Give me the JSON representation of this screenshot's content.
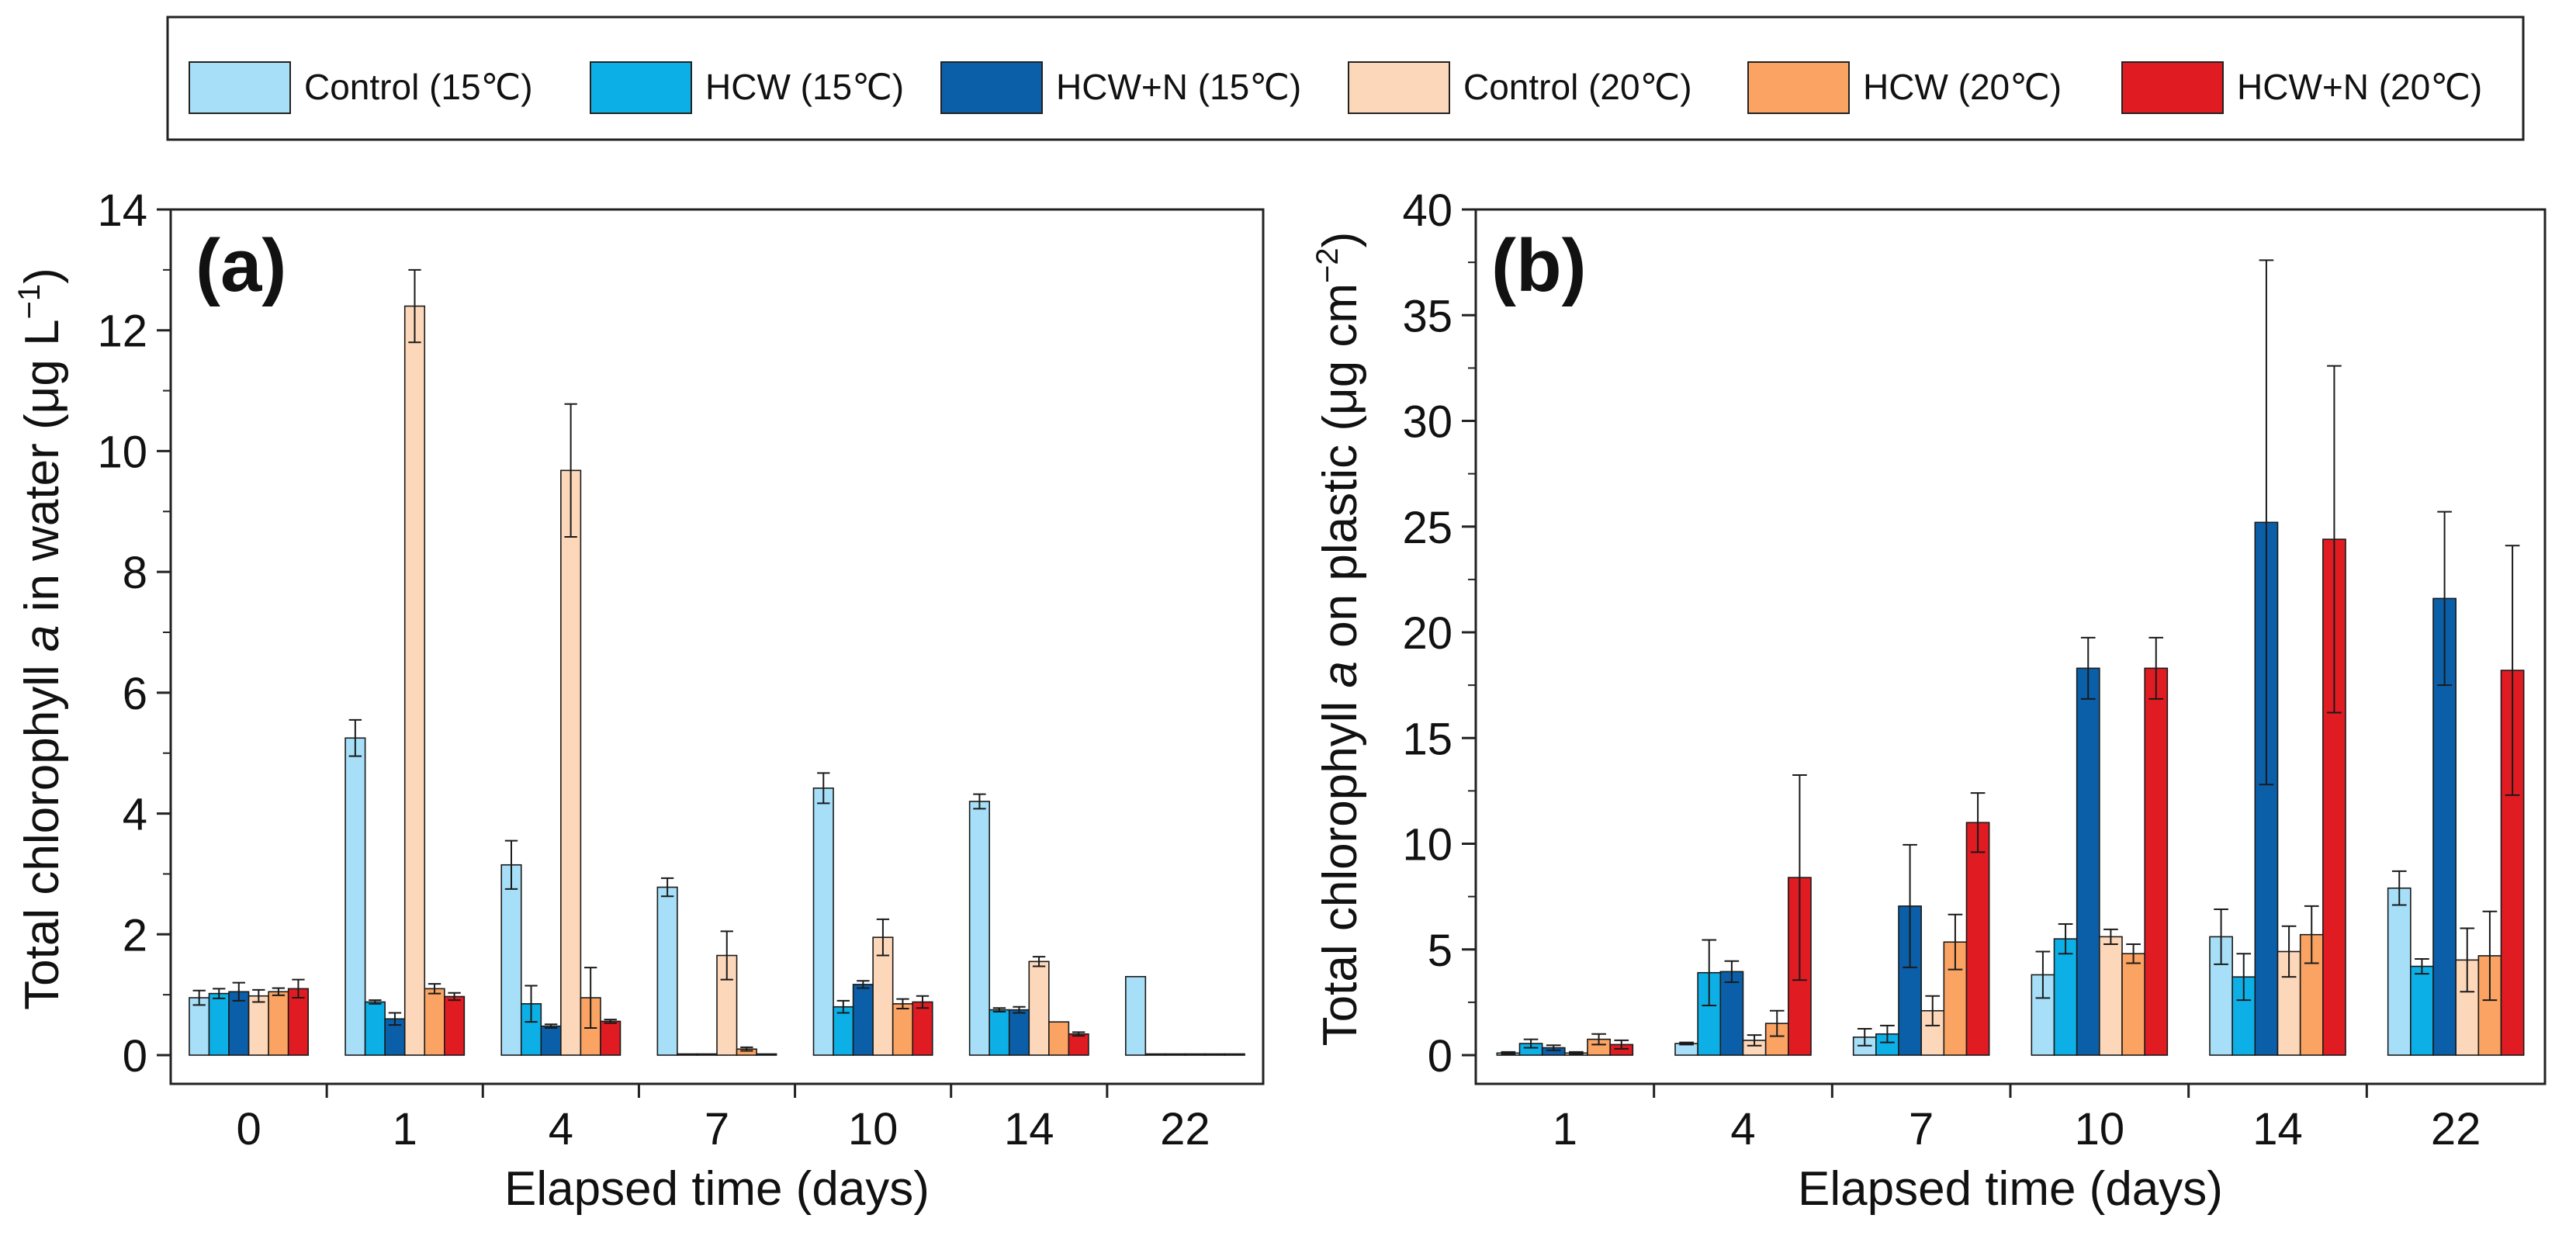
{
  "legend": [
    {
      "label": "Control (15℃)",
      "color": "#a6dff7"
    },
    {
      "label": "HCW (15℃)",
      "color": "#0db0e6"
    },
    {
      "label": "HCW+N (15℃)",
      "color": "#0a5fa8"
    },
    {
      "label": "Control (20℃)",
      "color": "#fdd7b9"
    },
    {
      "label": "HCW (20℃)",
      "color": "#faa362"
    },
    {
      "label": "HCW+N (20℃)",
      "color": "#e01b22"
    }
  ],
  "chart_data": [
    {
      "type": "bar",
      "panel_label": "(a)",
      "xlabel": "Elapsed time (days)",
      "ylabel_parts": [
        "Total chlorophyll ",
        "a",
        " in water (μg L",
        "−1",
        ")"
      ],
      "ylim": [
        0,
        14
      ],
      "yticks": [
        "0",
        "2",
        "4",
        "6",
        "8",
        "10",
        "12",
        "14"
      ],
      "categories": [
        "0",
        "1",
        "4",
        "7",
        "10",
        "14",
        "22"
      ],
      "series": [
        {
          "name": "Control (15℃)",
          "values": [
            0.95,
            5.25,
            3.15,
            2.78,
            4.42,
            4.2,
            1.3
          ],
          "errors": [
            0.12,
            0.3,
            0.4,
            0.15,
            0.25,
            0.12,
            0
          ]
        },
        {
          "name": "HCW (15℃)",
          "values": [
            1.02,
            0.88,
            0.85,
            0.02,
            0.8,
            0.75,
            0.02
          ],
          "errors": [
            0.08,
            0.03,
            0.3,
            0,
            0.1,
            0.03,
            0
          ]
        },
        {
          "name": "HCW+N (15℃)",
          "values": [
            1.05,
            0.6,
            0.48,
            0.02,
            1.17,
            0.75,
            0.02
          ],
          "errors": [
            0.15,
            0.1,
            0.03,
            0,
            0.06,
            0.05,
            0
          ]
        },
        {
          "name": "Control (20℃)",
          "values": [
            0.98,
            12.4,
            9.68,
            1.65,
            1.95,
            1.55,
            0.02
          ],
          "errors": [
            0.1,
            0.6,
            1.1,
            0.4,
            0.3,
            0.08,
            0
          ]
        },
        {
          "name": "HCW (20℃)",
          "values": [
            1.05,
            1.1,
            0.95,
            0.1,
            0.85,
            0.55,
            0.02
          ],
          "errors": [
            0.06,
            0.08,
            0.5,
            0.03,
            0.08,
            0,
            0
          ]
        },
        {
          "name": "HCW+N (20℃)",
          "values": [
            1.1,
            0.97,
            0.56,
            0.02,
            0.88,
            0.35,
            0.02
          ],
          "errors": [
            0.15,
            0.06,
            0.03,
            0,
            0.1,
            0.03,
            0
          ]
        }
      ]
    },
    {
      "type": "bar",
      "panel_label": "(b)",
      "xlabel": "Elapsed time (days)",
      "ylabel_parts": [
        "Total chlorophyll ",
        "a",
        " on plastic (μg cm",
        "−2",
        ")"
      ],
      "ylim": [
        0,
        40
      ],
      "yticks": [
        "0",
        "5",
        "10",
        "15",
        "20",
        "25",
        "30",
        "35",
        "40"
      ],
      "categories": [
        "1",
        "4",
        "7",
        "10",
        "14",
        "22"
      ],
      "series": [
        {
          "name": "Control (15℃)",
          "values": [
            0.1,
            0.55,
            0.85,
            3.8,
            5.6,
            7.9
          ],
          "errors": [
            0.05,
            0.05,
            0.4,
            1.1,
            1.3,
            0.8
          ]
        },
        {
          "name": "HCW (15℃)",
          "values": [
            0.55,
            3.9,
            1.0,
            5.5,
            3.7,
            4.2
          ],
          "errors": [
            0.2,
            1.55,
            0.4,
            0.7,
            1.1,
            0.35
          ]
        },
        {
          "name": "HCW+N (15℃)",
          "values": [
            0.35,
            3.95,
            7.05,
            18.3,
            25.2,
            21.6
          ],
          "errors": [
            0.12,
            0.5,
            2.9,
            1.45,
            12.4,
            4.1
          ]
        },
        {
          "name": "Control (20℃)",
          "values": [
            0.1,
            0.7,
            2.1,
            5.6,
            4.9,
            4.5
          ],
          "errors": [
            0.05,
            0.25,
            0.7,
            0.35,
            1.2,
            1.5
          ]
        },
        {
          "name": "HCW (20℃)",
          "values": [
            0.75,
            1.5,
            5.35,
            4.8,
            5.7,
            4.7
          ],
          "errors": [
            0.25,
            0.6,
            1.3,
            0.45,
            1.35,
            2.1
          ]
        },
        {
          "name": "HCW+N (20℃)",
          "values": [
            0.5,
            8.4,
            11.0,
            18.3,
            24.4,
            18.2
          ],
          "errors": [
            0.2,
            4.85,
            1.4,
            1.45,
            8.2,
            5.9
          ]
        }
      ]
    }
  ]
}
